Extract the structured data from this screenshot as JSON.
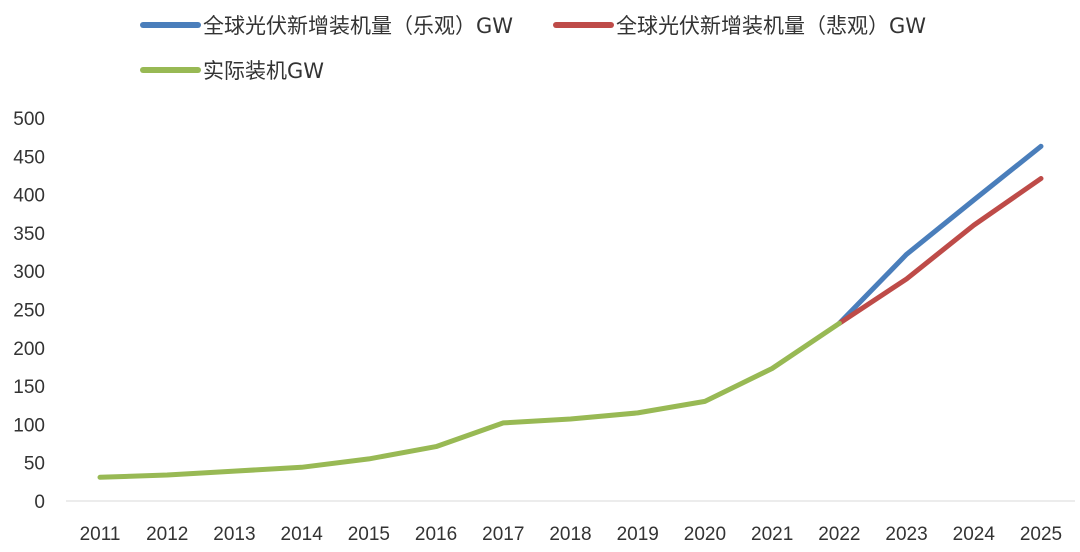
{
  "chart_data": {
    "type": "line",
    "title": "",
    "xlabel": "",
    "ylabel": "",
    "ylim": [
      0,
      500
    ],
    "yticks": [
      0,
      50,
      100,
      150,
      200,
      250,
      300,
      350,
      400,
      450,
      500
    ],
    "categories": [
      "2011",
      "2012",
      "2013",
      "2014",
      "2015",
      "2016",
      "2017",
      "2018",
      "2019",
      "2020",
      "2021",
      "2022",
      "2023",
      "2024",
      "2025"
    ],
    "grid": false,
    "legend_position": "top",
    "series": [
      {
        "name": "全球光伏新增装机量（乐观）GW",
        "color": "#4A7EBB",
        "x": [
          "2022",
          "2023",
          "2024",
          "2025"
        ],
        "values": [
          232,
          322,
          393,
          463
        ]
      },
      {
        "name": "全球光伏新增装机量（悲观）GW",
        "color": "#BE4B48",
        "x": [
          "2022",
          "2023",
          "2024",
          "2025"
        ],
        "values": [
          232,
          290,
          360,
          421
        ]
      },
      {
        "name": "实际装机GW",
        "color": "#98B954",
        "x": [
          "2011",
          "2012",
          "2013",
          "2014",
          "2015",
          "2016",
          "2017",
          "2018",
          "2019",
          "2020",
          "2021",
          "2022"
        ],
        "values": [
          31,
          34,
          39,
          44,
          55,
          71,
          102,
          107,
          115,
          130,
          173,
          232
        ]
      }
    ]
  }
}
